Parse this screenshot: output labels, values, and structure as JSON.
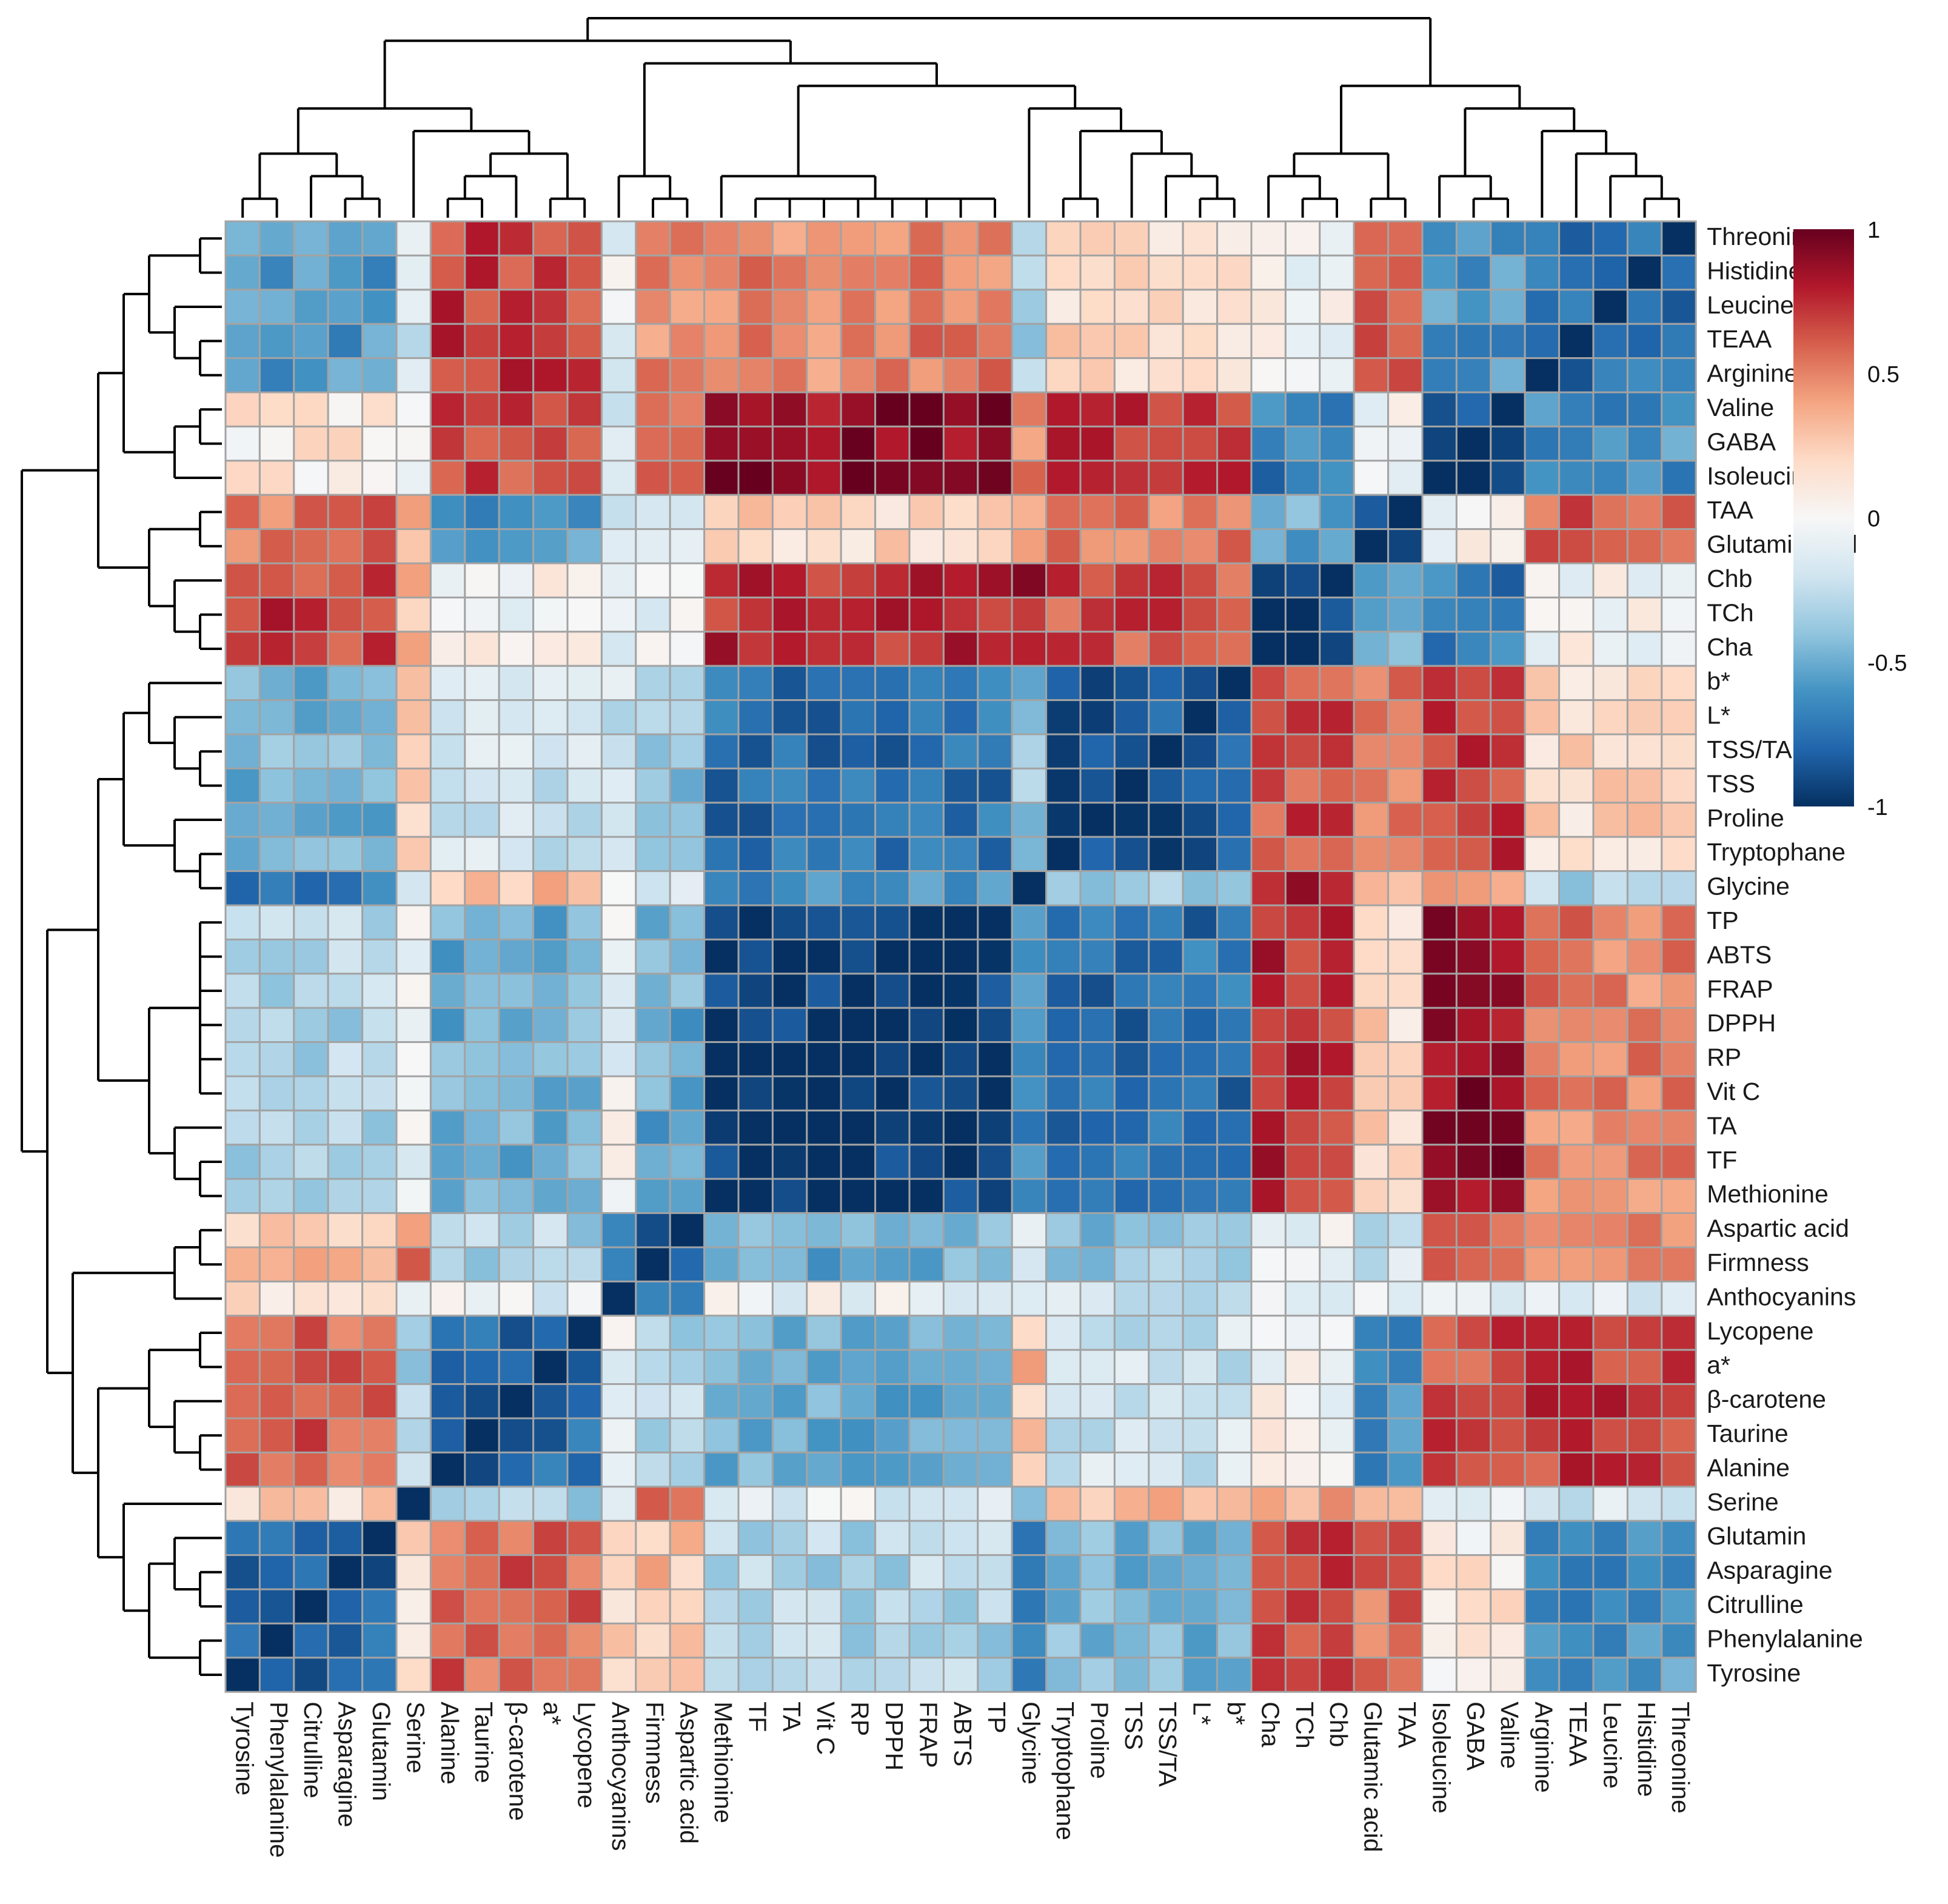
{
  "chart_data": {
    "type": "heatmap",
    "title": "",
    "rows": [
      "Threonine",
      "Histidine",
      "Leucine",
      "TEAA",
      "Arginine",
      "Valine",
      "GABA",
      "Isoleucine",
      "TAA",
      "Glutamic acid",
      "Chb",
      "TCh",
      "Cha",
      "b*",
      "L*",
      "TSS/TA",
      "TSS",
      "Proline",
      "Tryptophane",
      "Glycine",
      "TP",
      "ABTS",
      "FRAP",
      "DPPH",
      "RP",
      "Vit C",
      "TA",
      "TF",
      "Methionine",
      "Aspartic acid",
      "Firmness",
      "Anthocyanins",
      "Lycopene",
      "a*",
      "β-carotene",
      "Taurine",
      "Alanine",
      "Serine",
      "Glutamin",
      "Asparagine",
      "Citrulline",
      "Phenylalanine",
      "Tyrosine"
    ],
    "columns": [
      "Tyrosine",
      "Phenylalanine",
      "Citrulline",
      "Asparagine",
      "Glutamin",
      "Serine",
      "Alanine",
      "Taurine",
      "β-carotene",
      "a*",
      "Lycopene",
      "Anthocyanins",
      "Firmness",
      "Aspartic acid",
      "Methionine",
      "TF",
      "TA",
      "Vit C",
      "RP",
      "DPPH",
      "FRAP",
      "ABTS",
      "TP",
      "Glycine",
      "Tryptophane",
      "Proline",
      "TSS",
      "TSS/TA",
      "L*",
      "b*",
      "Cha",
      "TCh",
      "Chb",
      "Glutamic acid",
      "TAA",
      "Isoleucine",
      "GABA",
      "Valine",
      "Arginine",
      "TEAA",
      "Leucine",
      "Histidine",
      "Threonine"
    ],
    "value_range": [
      -1,
      1
    ],
    "colorbar": {
      "ticks": [
        1,
        0.5,
        0,
        -0.5,
        -1
      ],
      "tick_labels": [
        "1",
        "0.5",
        "0",
        "-0.5",
        "-1"
      ],
      "colors": [
        "#053061",
        "#2166ac",
        "#4393c3",
        "#92c5de",
        "#d1e5f0",
        "#f7f7f7",
        "#fddbc7",
        "#f4a582",
        "#d6604d",
        "#b2182b",
        "#67001f"
      ]
    },
    "clustering": "hierarchical (rows and columns)"
  }
}
